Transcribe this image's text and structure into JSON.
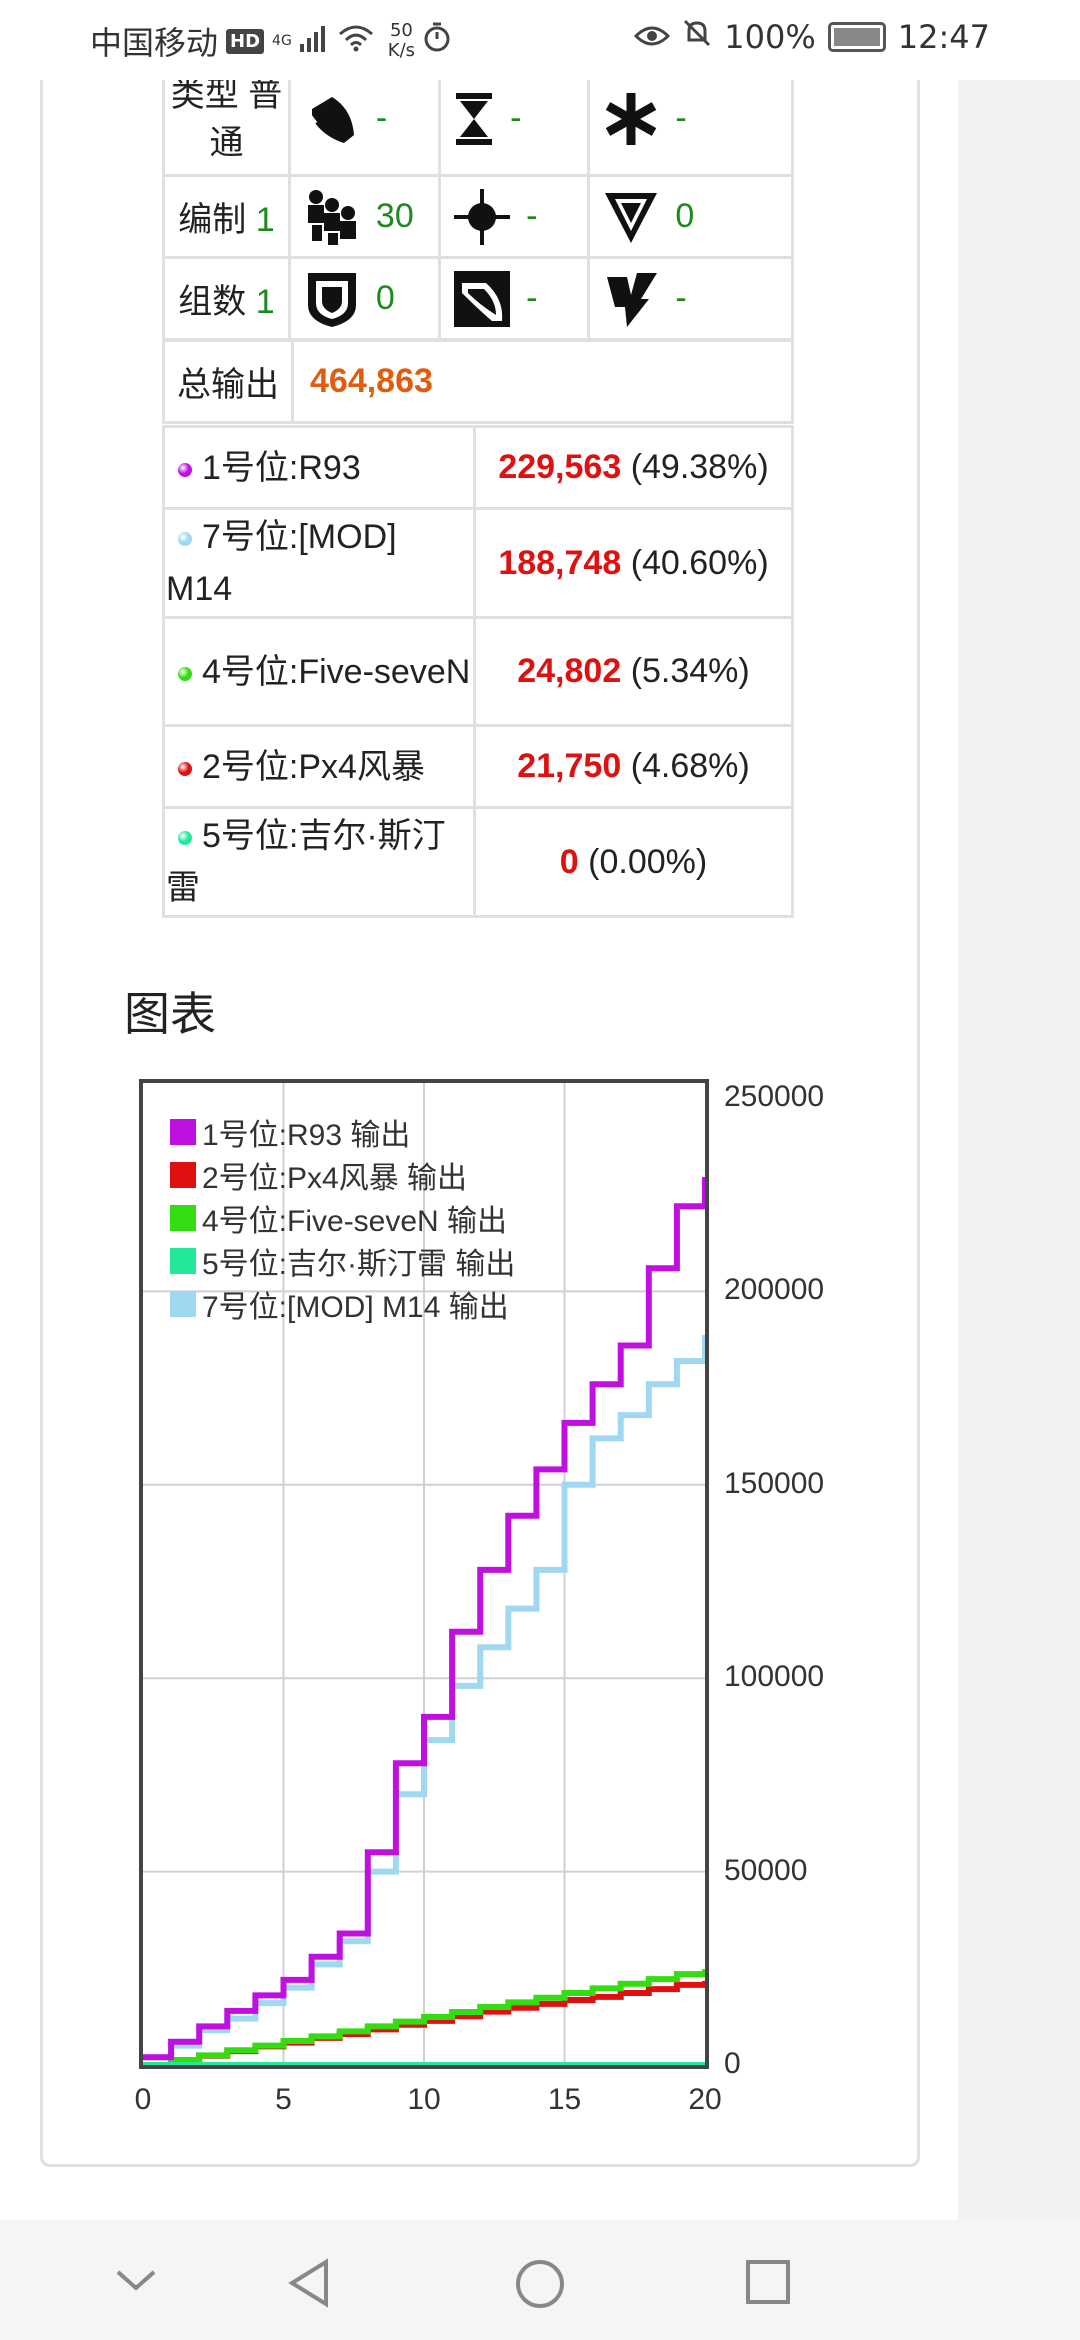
{
  "status_bar": {
    "carrier": "中国移动",
    "hd": "HD",
    "network": "4G",
    "speed_value": "50",
    "speed_unit": "K/s",
    "battery": "100%",
    "time": "12:47"
  },
  "stats": {
    "type_label": "类型",
    "type_value": "普通",
    "formation_label": "编制",
    "formation_value": "1",
    "groups_label": "组数",
    "groups_value": "1",
    "row1": [
      "-",
      "-",
      "-"
    ],
    "row2": [
      "30",
      "-",
      "0"
    ],
    "row3": [
      "0",
      "-",
      "-"
    ]
  },
  "total": {
    "label": "总输出",
    "value": "464,863"
  },
  "breakdown": [
    {
      "name": "1号位:R93",
      "value": "229,563",
      "pct": "(49.38%)",
      "color": "#c010e0"
    },
    {
      "name": "7号位:[MOD] M14",
      "value": "188,748",
      "pct": "(40.60%)",
      "color": "#9fd8f0"
    },
    {
      "name": "4号位:Five-seveN",
      "value": "24,802",
      "pct": "(5.34%)",
      "color": "#33dd11"
    },
    {
      "name": "2号位:Px4风暴",
      "value": "21,750",
      "pct": "(4.68%)",
      "color": "#e01010"
    },
    {
      "name": "5号位:吉尔·斯汀雷",
      "value": "0",
      "pct": "(0.00%)",
      "color": "#22e899"
    }
  ],
  "section_title": "图表",
  "chart_data": {
    "type": "line",
    "step": true,
    "xlim": [
      0,
      20
    ],
    "ylim": [
      0,
      250000
    ],
    "xticks": [
      "0",
      "5",
      "10",
      "15",
      "20"
    ],
    "yticks": [
      "250000",
      "200000",
      "150000",
      "100000",
      "50000",
      "0"
    ],
    "y_axis_side": "right",
    "grid": true,
    "legend_position": "top-left",
    "x": [
      0,
      1,
      2,
      3,
      4,
      5,
      6,
      7,
      8,
      9,
      10,
      11,
      12,
      13,
      14,
      15,
      16,
      17,
      18,
      19,
      20
    ],
    "series": [
      {
        "name": "1号位:R93 输出",
        "color": "#c010e0",
        "values": [
          2000,
          6000,
          10000,
          14000,
          18000,
          22000,
          28000,
          34000,
          55000,
          78000,
          90000,
          112000,
          128000,
          142000,
          154000,
          166000,
          176000,
          186000,
          206000,
          222000,
          229563
        ]
      },
      {
        "name": "2号位:Px4风暴 输出",
        "color": "#e01010",
        "values": [
          0,
          1200,
          2400,
          3600,
          4800,
          5800,
          7000,
          8000,
          9200,
          10400,
          11400,
          12600,
          13800,
          14800,
          15800,
          16800,
          17600,
          18600,
          19600,
          20700,
          21750
        ]
      },
      {
        "name": "4号位:Five-seveN 输出",
        "color": "#33dd11",
        "values": [
          0,
          1300,
          2500,
          3800,
          5000,
          6200,
          7400,
          8700,
          10000,
          11200,
          12400,
          13700,
          15000,
          16200,
          17400,
          18600,
          19800,
          21000,
          22200,
          23500,
          24802
        ]
      },
      {
        "name": "5号位:吉尔·斯汀雷 输出",
        "color": "#22e899",
        "values": [
          0,
          0,
          0,
          0,
          0,
          0,
          0,
          0,
          0,
          0,
          0,
          0,
          0,
          0,
          0,
          0,
          0,
          0,
          0,
          0,
          0
        ]
      },
      {
        "name": "7号位:[MOD] M14 输出",
        "color": "#9fd8f0",
        "values": [
          2000,
          5000,
          9000,
          12000,
          16000,
          20000,
          26000,
          32000,
          50000,
          70000,
          84000,
          98000,
          108000,
          118000,
          128000,
          150000,
          162000,
          168000,
          176000,
          182000,
          188748
        ]
      }
    ]
  }
}
